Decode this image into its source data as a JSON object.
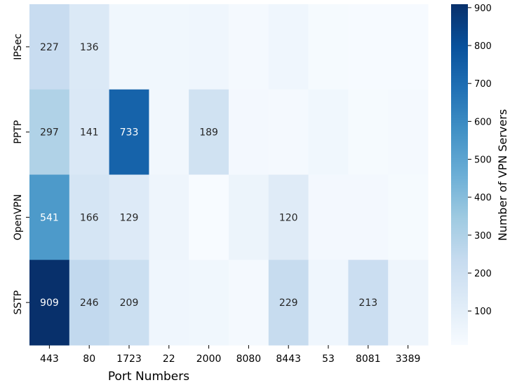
{
  "chart_data": {
    "type": "heatmap",
    "title": "",
    "xlabel": "Port Numbers",
    "ylabel": "",
    "x_categories": [
      "443",
      "80",
      "1723",
      "22",
      "2000",
      "8080",
      "8443",
      "53",
      "8081",
      "3389"
    ],
    "y_categories": [
      "IPSec",
      "PPTP",
      "OpenVPN",
      "SSTP"
    ],
    "values": [
      [
        227,
        136,
        40,
        40,
        45,
        25,
        45,
        20,
        15,
        15
      ],
      [
        297,
        141,
        733,
        35,
        189,
        30,
        25,
        40,
        20,
        25
      ],
      [
        541,
        166,
        129,
        50,
        10,
        60,
        120,
        30,
        30,
        20
      ],
      [
        909,
        246,
        209,
        45,
        40,
        25,
        229,
        45,
        213,
        50
      ]
    ],
    "annotations": [
      [
        "227",
        "136",
        "",
        "",
        "",
        "",
        "",
        "",
        "",
        ""
      ],
      [
        "297",
        "141",
        "733",
        "",
        "189",
        "",
        "",
        "",
        "",
        ""
      ],
      [
        "541",
        "166",
        "129",
        "",
        "",
        "",
        "120",
        "",
        "",
        ""
      ],
      [
        "909",
        "246",
        "209",
        "",
        "",
        "",
        "229",
        "",
        "213",
        ""
      ]
    ],
    "colorbar": {
      "label": "Number of VPN Servers",
      "ticks": [
        100,
        200,
        300,
        400,
        500,
        600,
        700,
        800,
        900
      ],
      "range": [
        10,
        909
      ],
      "colormap": "Blues"
    }
  }
}
